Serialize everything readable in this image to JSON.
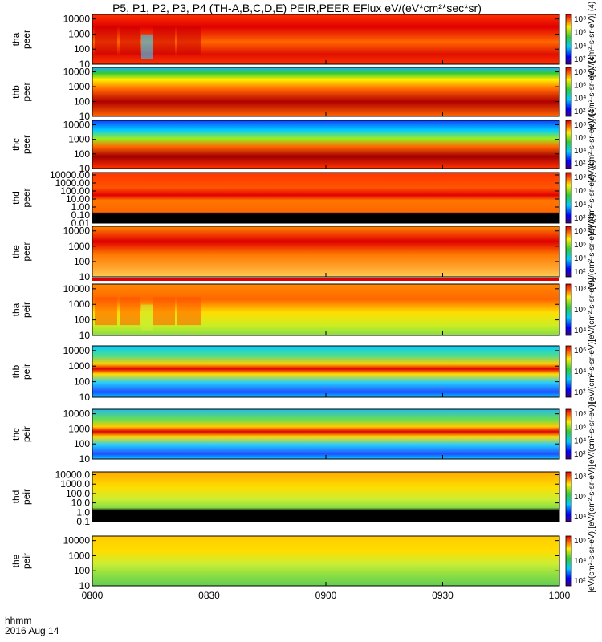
{
  "chart_data": {
    "type": "heatmap",
    "title": "P5, P1, P2, P3, P4 (TH-A,B,C,D,E) PEIR,PEER EFlux eV/(eV*cm²*sec*sr)",
    "time_axis": {
      "labels": [
        "0800",
        "0830",
        "0900",
        "0930",
        "1000"
      ],
      "start": "08:00",
      "end": "10:00",
      "date": "2016 Aug 14"
    },
    "footer": {
      "line1": "hhmm",
      "line2": "2016 Aug 14"
    },
    "panels": [
      {
        "probe": "tha",
        "label": "tha peer",
        "ylabel": "tha\npeer",
        "yticks": [
          "10000",
          "1000",
          "100",
          "10"
        ],
        "colorbar_ticks": [
          "10⁸",
          "10⁶",
          "10⁴",
          "10²"
        ],
        "colorbar_label": "[eV/(cm²-s-sr-eV)] (4)",
        "ylim": [
          10,
          20000
        ],
        "yscale": "log"
      },
      {
        "probe": "thb",
        "label": "thb peer",
        "ylabel": "thb\npeer",
        "yticks": [
          "10000",
          "1000",
          "100",
          "10"
        ],
        "colorbar_ticks": [
          "10⁸",
          "10⁶",
          "10⁴",
          "10²"
        ],
        "colorbar_label": "[eV/(cm²-s-sr-eV)] (4)",
        "ylim": [
          10,
          20000
        ],
        "yscale": "log"
      },
      {
        "probe": "thc",
        "label": "thc peer",
        "ylabel": "thc\npeer",
        "yticks": [
          "10000",
          "1000",
          "100",
          "10"
        ],
        "colorbar_ticks": [
          "10⁸",
          "10⁶",
          "10⁴",
          "10²"
        ],
        "colorbar_label": "[eV/(cm²-s-sr-eV)] (4)",
        "ylim": [
          10,
          20000
        ],
        "yscale": "log"
      },
      {
        "probe": "thd",
        "label": "thd peer",
        "ylabel": "thd\npeer",
        "yticks": [
          "10000.00",
          "1000.00",
          "100.00",
          "10.00",
          "1.00",
          "0.10",
          "0.01"
        ],
        "colorbar_ticks": [
          "10⁸",
          "10⁶",
          "10⁴",
          "10²"
        ],
        "colorbar_label": "[eV/(cm²-s-sr-eV)] (4)",
        "ylim": [
          0.01,
          20000
        ],
        "yscale": "log"
      },
      {
        "probe": "the",
        "label": "the peer",
        "ylabel": "the\npeer",
        "yticks": [
          "10000",
          "1000",
          "100",
          "10"
        ],
        "colorbar_ticks": [
          "10⁸",
          "10⁶",
          "10⁴",
          "10²"
        ],
        "colorbar_label": "[eV/(cm²-s-sr-eV)] (4)",
        "ylim": [
          10,
          20000
        ],
        "yscale": "log"
      },
      {
        "probe": "tha",
        "label": "tha peir",
        "ylabel": "tha\npeir",
        "yticks": [
          "10000",
          "1000",
          "100",
          "10"
        ],
        "colorbar_ticks": [
          "10⁸",
          "10⁶",
          "10⁴"
        ],
        "colorbar_label": "[eV/(cm²-s-sr-eV)]",
        "ylim": [
          10,
          20000
        ],
        "yscale": "log"
      },
      {
        "probe": "thb",
        "label": "thb peir",
        "ylabel": "thb\npeir",
        "yticks": [
          "10000",
          "1000",
          "100",
          "10"
        ],
        "colorbar_ticks": [
          "10⁶",
          "10⁴",
          "10²"
        ],
        "colorbar_label": "[eV/(cm²-s-sr-eV)]",
        "ylim": [
          10,
          20000
        ],
        "yscale": "log"
      },
      {
        "probe": "thc",
        "label": "thc peir",
        "ylabel": "thc\npeir",
        "yticks": [
          "10000",
          "1000",
          "100",
          "10"
        ],
        "colorbar_ticks": [
          "10⁸",
          "10⁶",
          "10⁴",
          "10²"
        ],
        "colorbar_label": "[eV/(cm²-s-sr-eV)]",
        "ylim": [
          10,
          20000
        ],
        "yscale": "log"
      },
      {
        "probe": "thd",
        "label": "thd peir",
        "ylabel": "thd\npeir",
        "yticks": [
          "10000.0",
          "1000.0",
          "100.0",
          "10.0",
          "1.0",
          "0.1"
        ],
        "colorbar_ticks": [
          "10⁸",
          "10⁶",
          "10⁴"
        ],
        "colorbar_label": "[eV/(cm²-s-sr-eV)]",
        "ylim": [
          0.1,
          20000
        ],
        "yscale": "log"
      },
      {
        "probe": "the",
        "label": "the peir",
        "ylabel": "the\npeir",
        "yticks": [
          "10000",
          "1000",
          "100",
          "10"
        ],
        "colorbar_ticks": [
          "10⁶",
          "10⁴",
          "10²"
        ],
        "colorbar_label": "[eV/(cm²-s-sr-eV)]",
        "ylim": [
          10,
          20000
        ],
        "yscale": "log"
      }
    ],
    "colors": {
      "red": "#e00000",
      "orange": "#ff6600",
      "yellow": "#ffee00",
      "green": "#33cc33",
      "cyan": "#00ccff",
      "blue": "#0000ff",
      "darkred": "#a00000"
    }
  }
}
